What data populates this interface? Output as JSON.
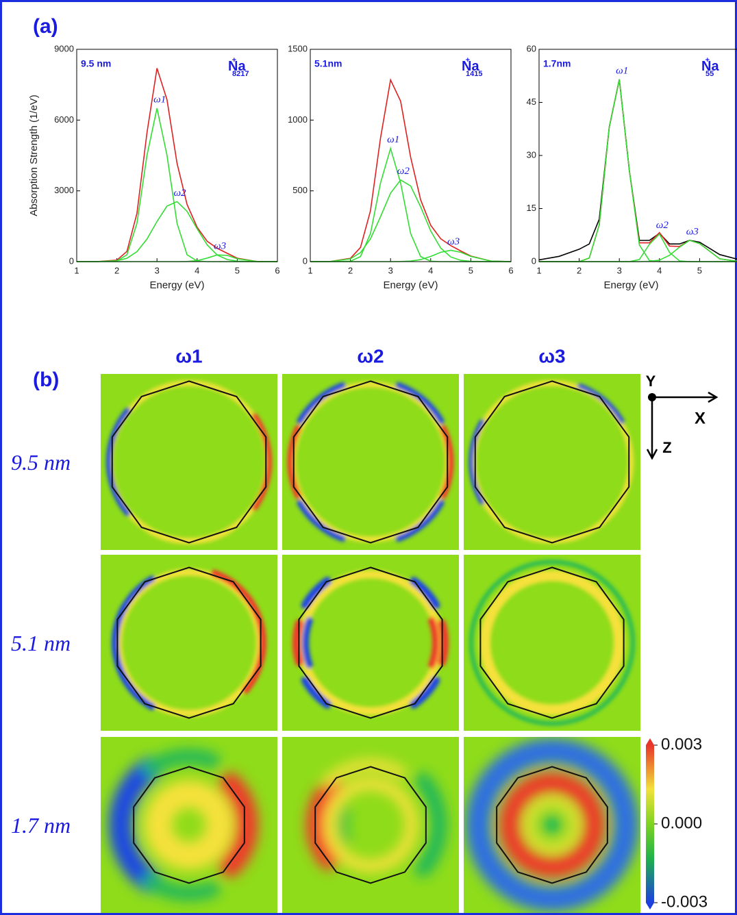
{
  "panel_a_label": "(a)",
  "panel_b_label": "(b)",
  "chart_data": [
    {
      "type": "line",
      "size_label": "9.5 nm",
      "ion": "Na",
      "ion_charge": "+",
      "ion_count": "8217",
      "xlabel": "Energy (eV)",
      "ylabel": "Absorption Strength (1/eV)",
      "x": [
        1,
        1.5,
        2,
        2.25,
        2.5,
        2.75,
        3,
        3.25,
        3.5,
        3.75,
        4,
        4.25,
        4.5,
        4.75,
        5,
        5.5,
        6
      ],
      "xlim": [
        1,
        6
      ],
      "xticks": [
        1,
        2,
        3,
        4,
        5,
        6
      ],
      "ylim": [
        0,
        9000
      ],
      "yticks": [
        0,
        3000,
        6000,
        9000
      ],
      "series": [
        {
          "color": "#e02020",
          "values": [
            0,
            1,
            63,
            433,
            2040,
            5467,
            8200,
            6864,
            4164,
            2425,
            1458,
            862,
            566,
            351,
            144,
            3,
            0
          ]
        },
        {
          "name": "ω1",
          "color": "#33dd33",
          "values": [
            0,
            0,
            25,
            290,
            1620,
            4510,
            6500,
            4510,
            1620,
            290,
            25,
            1,
            0,
            0,
            0,
            0,
            0
          ]
        },
        {
          "name": "ω2",
          "color": "#33dd33",
          "values": [
            0,
            1,
            38,
            143,
            420,
            957,
            1700,
            2354,
            2544,
            2130,
            1392,
            709,
            282,
            87,
            21,
            0,
            0
          ]
        },
        {
          "name": "ω3",
          "color": "#33dd33",
          "values": [
            0,
            0,
            0,
            0,
            0,
            0,
            0,
            0,
            0,
            5,
            41,
            152,
            284,
            264,
            123,
            3,
            0
          ]
        }
      ]
    },
    {
      "type": "line",
      "size_label": "5.1nm",
      "ion": "Na",
      "ion_charge": "+",
      "ion_count": "1415",
      "xlabel": "Energy (eV)",
      "x": [
        1,
        1.5,
        2,
        2.25,
        2.5,
        2.75,
        3,
        3.25,
        3.5,
        3.75,
        4,
        4.25,
        4.5,
        4.75,
        5,
        5.5,
        6
      ],
      "xlim": [
        1,
        6
      ],
      "xticks": [
        1,
        2,
        3,
        4,
        5,
        6
      ],
      "ylim": [
        0,
        1500
      ],
      "yticks": [
        0,
        500,
        1000,
        1500
      ],
      "series": [
        {
          "color": "#e02020",
          "values": [
            0,
            1,
            23,
            100,
            360,
            872,
            1284,
            1133,
            738,
            437,
            257,
            161,
            113,
            75,
            39,
            4,
            0
          ]
        },
        {
          "name": "ω1",
          "color": "#33dd33",
          "values": [
            0,
            0,
            3,
            36,
            199,
            555,
            800,
            555,
            199,
            36,
            3,
            0,
            0,
            0,
            0,
            0,
            0
          ]
        },
        {
          "name": "ω2",
          "color": "#33dd33",
          "values": [
            0,
            1,
            20,
            64,
            161,
            317,
            484,
            577,
            535,
            387,
            217,
            95,
            33,
            9,
            2,
            0,
            0
          ]
        },
        {
          "name": "ω3",
          "color": "#33dd33",
          "values": [
            0,
            0,
            0,
            0,
            0,
            0,
            0,
            1,
            4,
            14,
            37,
            66,
            80,
            66,
            37,
            4,
            0
          ]
        }
      ]
    },
    {
      "type": "line",
      "size_label": "1.7nm",
      "ion": "Na",
      "ion_charge": "+",
      "ion_count": "55",
      "xlabel": "Energy (eV)",
      "x": [
        1,
        1.5,
        2,
        2.25,
        2.5,
        2.75,
        3,
        3.25,
        3.5,
        3.75,
        4,
        4.25,
        4.5,
        4.75,
        5,
        5.5,
        6
      ],
      "xlim": [
        1,
        6
      ],
      "xticks": [
        1,
        2,
        3,
        4,
        5,
        6
      ],
      "ylim": [
        0,
        60
      ],
      "yticks": [
        0,
        15,
        30,
        45,
        60
      ],
      "series": [
        {
          "color": "#000000",
          "values": [
            0.5,
            1.5,
            3.5,
            5,
            12,
            38,
            51.5,
            25.6,
            6,
            6,
            8,
            5,
            5,
            6,
            5.5,
            2,
            0.5
          ]
        },
        {
          "color": "#e02020",
          "values": [
            0,
            0,
            0,
            1,
            10.4,
            38.1,
            51.5,
            25.6,
            5.3,
            5.3,
            8.2,
            4.4,
            4.3,
            6,
            5.1,
            0.8,
            0
          ]
        },
        {
          "name": "ω1",
          "color": "#33dd33",
          "values": [
            0,
            0,
            0,
            1,
            10.4,
            38.1,
            51.5,
            25.6,
            4.7,
            0.3,
            0,
            0,
            0,
            0,
            0,
            0,
            0
          ]
        },
        {
          "name": "ω2",
          "color": "#33dd33",
          "values": [
            0,
            0,
            0,
            0,
            0,
            0,
            0,
            0,
            0.6,
            4.9,
            7.8,
            2.6,
            0.2,
            0,
            0,
            0,
            0
          ]
        },
        {
          "name": "ω3",
          "color": "#33dd33",
          "values": [
            0,
            0,
            0,
            0,
            0,
            0,
            0,
            0,
            0,
            0.1,
            0.4,
            1.8,
            4.1,
            6,
            5.1,
            0.8,
            0
          ]
        }
      ]
    }
  ],
  "maps": {
    "columns": [
      "ω1",
      "ω2",
      "ω3"
    ],
    "rows": [
      "9.5 nm",
      "5.1 nm",
      "1.7 nm"
    ],
    "axes": {
      "y": "Y",
      "x": "X",
      "z": "Z"
    },
    "colorbar": {
      "ylim": [
        -0.003,
        0.003
      ],
      "yticks": [
        -0.003,
        {
          "value": 0,
          "label": "0.000"
        },
        0.003
      ]
    }
  }
}
